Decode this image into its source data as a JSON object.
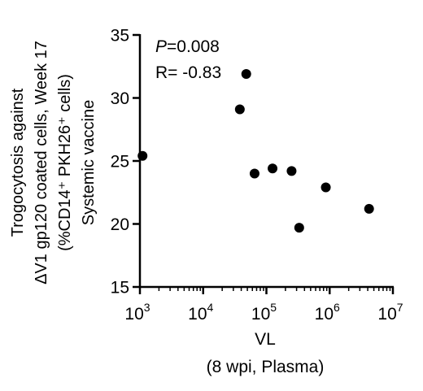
{
  "chart_data": {
    "type": "scatter",
    "title": "",
    "xlabel_lines": [
      "VL",
      "(8 wpi, Plasma)"
    ],
    "ylabel_lines": [
      "Trogocytosis against",
      "ΔV1 gp120 coated cells, Week 17",
      "(%CD14⁺ PKH26⁺ cells)",
      "Systemic vaccine"
    ],
    "x_scale": "log10",
    "xlim": [
      1000,
      10000000
    ],
    "ylim": [
      15,
      35
    ],
    "x_ticks": [
      {
        "value": 1000,
        "base": "10",
        "exp": "3"
      },
      {
        "value": 10000,
        "base": "10",
        "exp": "4"
      },
      {
        "value": 100000,
        "base": "10",
        "exp": "5"
      },
      {
        "value": 1000000,
        "base": "10",
        "exp": "6"
      },
      {
        "value": 10000000,
        "base": "10",
        "exp": "7"
      }
    ],
    "y_ticks": [
      {
        "value": 15,
        "label": "15"
      },
      {
        "value": 20,
        "label": "20"
      },
      {
        "value": 25,
        "label": "25"
      },
      {
        "value": 30,
        "label": "30"
      },
      {
        "value": 35,
        "label": "35"
      }
    ],
    "points": [
      {
        "x": 1100,
        "y": 25.4
      },
      {
        "x": 38000,
        "y": 29.1
      },
      {
        "x": 48000,
        "y": 31.9
      },
      {
        "x": 65000,
        "y": 24.0
      },
      {
        "x": 125000,
        "y": 24.4
      },
      {
        "x": 250000,
        "y": 24.2
      },
      {
        "x": 330000,
        "y": 19.7
      },
      {
        "x": 870000,
        "y": 22.9
      },
      {
        "x": 4200000,
        "y": 21.2
      }
    ],
    "annotations": {
      "p_label": "P",
      "p_value": "=0.008",
      "r_text": "R= -0.83"
    },
    "marker_color": "#000000",
    "grid": false
  }
}
